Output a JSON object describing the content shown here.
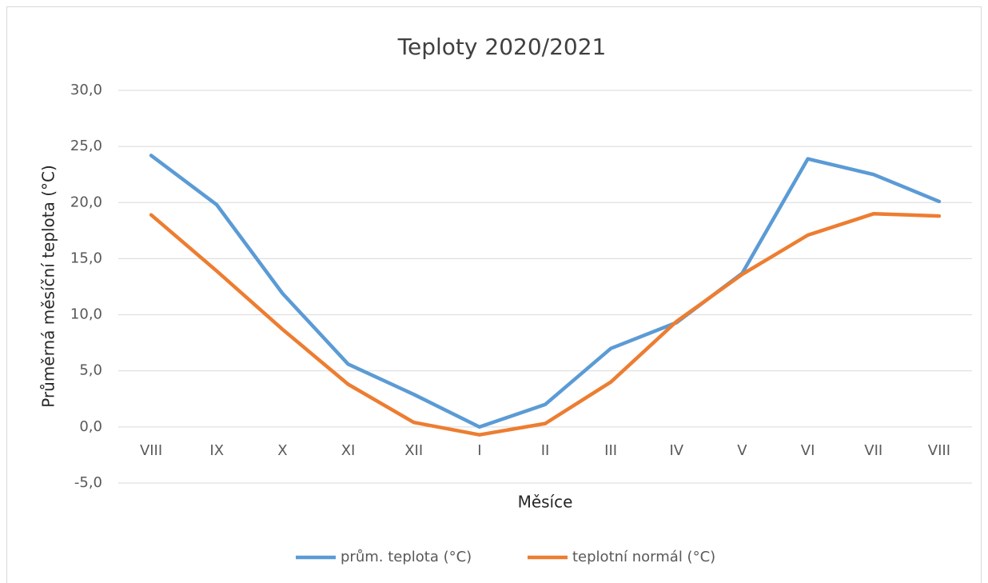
{
  "chart_data": {
    "type": "line",
    "title": "Teploty 2020/2021",
    "y_label": "Průměrná měsíční teplota (°C)",
    "x_label": "Měsíce",
    "categories": [
      "VIII",
      "IX",
      "X",
      "XI",
      "XII",
      "I",
      "II",
      "III",
      "IV",
      "V",
      "VI",
      "VII",
      "VIII"
    ],
    "series": [
      {
        "name": "prům. teplota (°C)",
        "color": "#5b9bd5",
        "values": [
          24.2,
          19.8,
          11.9,
          5.6,
          2.9,
          0.0,
          2.0,
          7.0,
          9.3,
          13.7,
          23.9,
          22.5,
          20.1
        ]
      },
      {
        "name": "teplotní normál (°C)",
        "color": "#ed7d31",
        "values": [
          18.9,
          13.9,
          8.7,
          3.8,
          0.4,
          -0.7,
          0.3,
          4.0,
          9.4,
          13.6,
          17.1,
          19.0,
          18.8
        ]
      }
    ],
    "ylim": [
      -5,
      30
    ],
    "yticks": [
      {
        "value": -5,
        "label": "-5,0"
      },
      {
        "value": 0,
        "label": "0,0"
      },
      {
        "value": 5,
        "label": "5,0"
      },
      {
        "value": 10,
        "label": "10,0"
      },
      {
        "value": 15,
        "label": "15,0"
      },
      {
        "value": 20,
        "label": "20,0"
      },
      {
        "value": 25,
        "label": "25,0"
      },
      {
        "value": 30,
        "label": "30,0"
      }
    ],
    "grid": true,
    "legend": "bottom"
  }
}
